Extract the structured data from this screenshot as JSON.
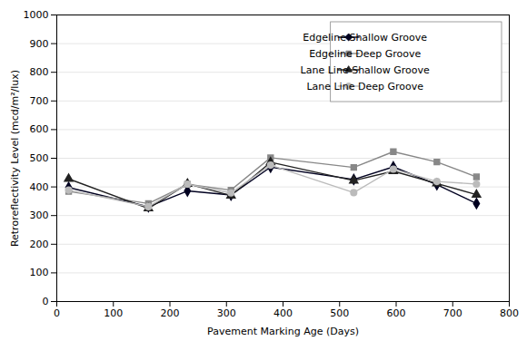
{
  "chart_data": {
    "type": "line",
    "xlabel": "Pavement Marking Age (Days)",
    "ylabel": "Retroreflectivity Level (mcd/m²/lux)",
    "x": [
      21,
      162,
      231,
      308,
      378,
      525,
      595,
      672,
      742
    ],
    "series": [
      {
        "name": "Edgeline Shallow Groove",
        "color": "#000020",
        "marker": "diamond",
        "values": [
          398,
          331,
          386,
          372,
          469,
          426,
          470,
          408,
          342
        ]
      },
      {
        "name": "Edgeline Deep Groove",
        "color": "#888888",
        "marker": "square",
        "values": [
          384,
          342,
          409,
          389,
          502,
          468,
          523,
          487,
          435
        ]
      },
      {
        "name": "Lane Line Shallow Groove",
        "color": "#222222",
        "marker": "triangle",
        "values": [
          428,
          325,
          411,
          370,
          486,
          422,
          455,
          412,
          373
        ]
      },
      {
        "name": "Lane Line Deep Groove",
        "color": "#bbbbbb",
        "marker": "circle",
        "values": [
          389,
          331,
          410,
          379,
          476,
          380,
          462,
          419,
          410
        ]
      }
    ],
    "xlim": [
      0,
      800
    ],
    "ylim": [
      0,
      1000
    ],
    "xticks": [
      0,
      100,
      200,
      300,
      400,
      500,
      600,
      700,
      800
    ],
    "yticks": [
      0,
      100,
      200,
      300,
      400,
      500,
      600,
      700,
      800,
      900,
      1000
    ],
    "grid": "y",
    "legend": "upper right"
  }
}
